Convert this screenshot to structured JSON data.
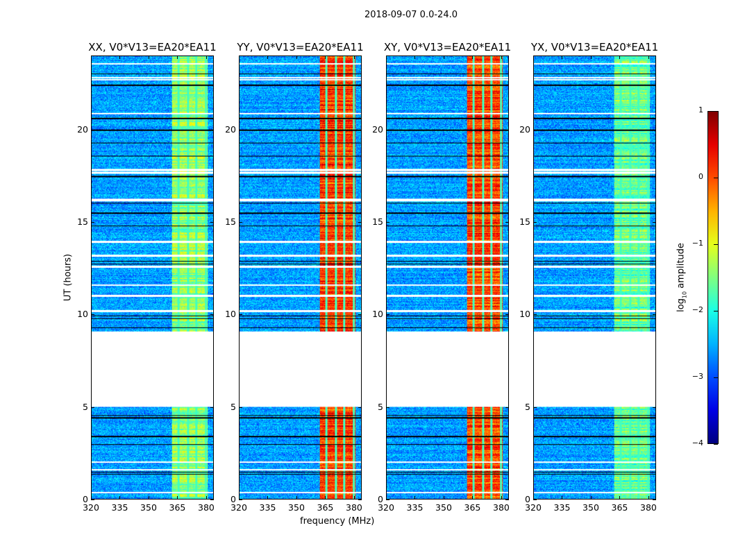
{
  "chart_data": {
    "type": "heatmap",
    "suptitle": "2018-09-07 0.0-24.0",
    "xlabel": "frequency (MHz)",
    "ylabel": "UT (hours)",
    "xlim": [
      320,
      384
    ],
    "ylim": [
      0,
      24
    ],
    "xticks": [
      320,
      335,
      350,
      365,
      380
    ],
    "yticks": [
      0,
      5,
      10,
      15,
      20
    ],
    "colormap": "jet",
    "colorbar": {
      "label": "log10 amplitude",
      "label_base": "log",
      "label_sub": "10",
      "label_rest": " amplitude",
      "range": [
        -4,
        1
      ],
      "ticks": [
        1,
        0,
        -1,
        -2,
        -3,
        -4
      ]
    },
    "no_data_hours": [
      5.0,
      9.1
    ],
    "flagged_white_hours": [
      23.6,
      22.75,
      22.85,
      20.9,
      17.85,
      17.7,
      16.2,
      16.25,
      13.95,
      13.2,
      12.6,
      11.6,
      11.0,
      11.05,
      10.2,
      2.0,
      1.6,
      0.35
    ],
    "dark_line_hours": [
      23.05,
      22.45,
      20.65,
      20.0,
      19.3,
      18.6,
      17.5,
      16.05,
      15.5,
      14.8,
      12.9,
      12.75,
      9.95,
      9.8,
      9.3,
      4.55,
      4.4,
      3.4,
      2.95,
      1.45,
      1.35
    ],
    "rfi_band_mhz": [
      362,
      381
    ],
    "rfi_gaps_mhz": [
      365.5,
      370.5,
      375,
      380
    ],
    "background_level": -2.6,
    "panels": [
      {
        "title": "XX, V0*V13=EA20*EA11",
        "band_level": -1.4
      },
      {
        "title": "YY, V0*V13=EA20*EA11",
        "band_level": 0.1
      },
      {
        "title": "XY, V0*V13=EA20*EA11",
        "band_level": 0.05
      },
      {
        "title": "YX, V0*V13=EA20*EA11",
        "band_level": -1.6
      }
    ]
  }
}
